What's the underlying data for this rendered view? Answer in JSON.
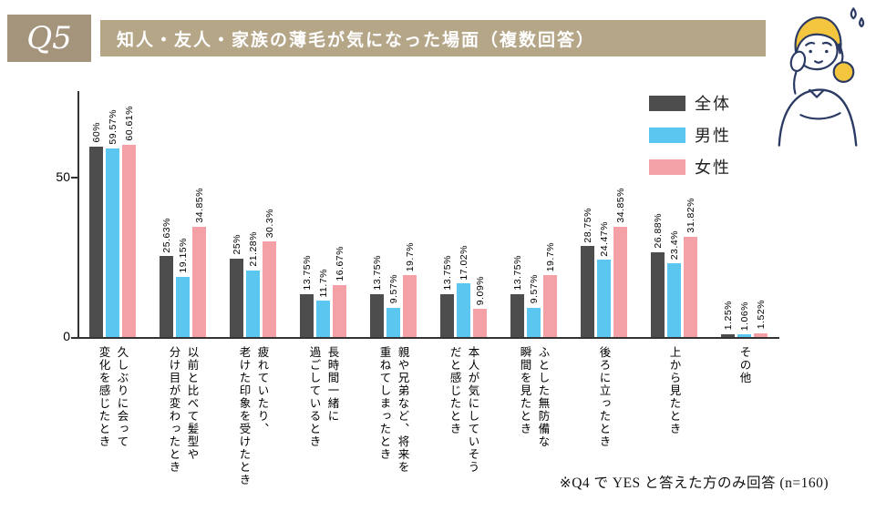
{
  "header": {
    "q_label": "Q5",
    "title": "知人・友人・家族の薄毛が気になった場面（複数回答）",
    "accent_color": "#b5a688",
    "badge_color": "#a3947b"
  },
  "footnote": "※Q4 で YES と答えた方のみ回答 (n=160)",
  "chart_data": {
    "type": "bar",
    "categories": [
      "久しぶりに会って\n変化を感じたとき",
      "以前と比べて髪型や\n分け目が変わったとき",
      "疲れていたり、\n老けた印象を受けたとき",
      "長時間一緒に\n過ごしているとき",
      "親や兄弟など、将来を\n重ねてしまったとき",
      "本人が気にしていそう\nだと感じたとき",
      "ふとした無防備な\n瞬間を見たとき",
      "後ろに立ったとき",
      "上から見たとき",
      "その他"
    ],
    "series": [
      {
        "name": "全体",
        "color": "#4d4d4d",
        "values": [
          60,
          25.63,
          25,
          13.75,
          13.75,
          13.75,
          13.75,
          28.75,
          26.88,
          1.25
        ]
      },
      {
        "name": "男性",
        "color": "#5bc6ef",
        "values": [
          59.57,
          19.15,
          21.28,
          11.7,
          9.57,
          17.02,
          9.57,
          24.47,
          23.4,
          1.06
        ]
      },
      {
        "name": "女性",
        "color": "#f4a0a7",
        "values": [
          60.61,
          34.85,
          30.3,
          16.67,
          19.7,
          9.09,
          19.7,
          34.85,
          31.82,
          1.52
        ]
      }
    ],
    "value_label_suffix": "%",
    "y_ticks": [
      0,
      50
    ],
    "ylim": [
      0,
      77
    ],
    "grid": false,
    "legend_position": "top-right",
    "title": "知人・友人・家族の薄毛が気になった場面（複数回答）"
  }
}
